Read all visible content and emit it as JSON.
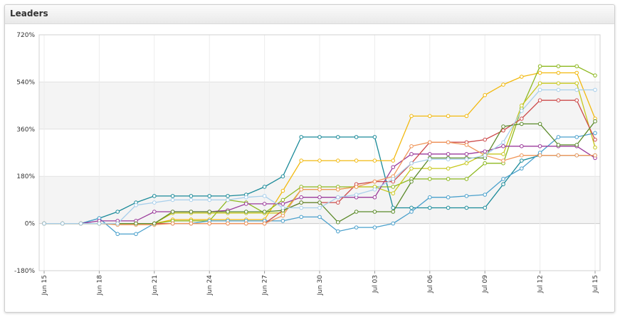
{
  "panel": {
    "title": "Leaders"
  },
  "chart_data": {
    "type": "line",
    "title": "",
    "xlabel": "",
    "ylabel": "",
    "ylim": [
      -180,
      720
    ],
    "ytick_labels": [
      "720%",
      "540%",
      "360%",
      "180%",
      "0%",
      "-180%"
    ],
    "ytick_values": [
      720,
      540,
      360,
      180,
      0,
      -180
    ],
    "grid": true,
    "legend": "none",
    "x": [
      "Jun 15",
      "Jun 16",
      "Jun 17",
      "Jun 18",
      "Jun 19",
      "Jun 20",
      "Jun 21",
      "Jun 22",
      "Jun 23",
      "Jun 24",
      "Jun 25",
      "Jun 26",
      "Jun 27",
      "Jun 28",
      "Jun 29",
      "Jun 30",
      "Jul 01",
      "Jul 02",
      "Jul 03",
      "Jul 04",
      "Jul 05",
      "Jul 06",
      "Jul 07",
      "Jul 08",
      "Jul 09",
      "Jul 10",
      "Jul 11",
      "Jul 12",
      "Jul 13",
      "Jul 14",
      "Jul 15"
    ],
    "xtick_labels": [
      "Jun 15",
      "Jun 18",
      "Jun 21",
      "Jun 24",
      "Jun 27",
      "Jun 30",
      "Jul 03",
      "Jul 06",
      "Jul 09",
      "Jul 12",
      "Jul 15"
    ],
    "xtick_indices": [
      0,
      3,
      6,
      9,
      12,
      15,
      18,
      21,
      24,
      27,
      30
    ],
    "series": [
      {
        "color": "#1a8a99",
        "values": [
          0,
          0,
          0,
          20,
          45,
          80,
          105,
          105,
          105,
          105,
          105,
          110,
          140,
          180,
          330,
          330,
          330,
          330,
          330,
          60,
          60,
          60,
          60,
          60,
          60,
          150,
          240,
          260,
          260,
          260,
          260
        ]
      },
      {
        "color": "#f2b90f",
        "values": [
          0,
          0,
          0,
          0,
          0,
          0,
          0,
          15,
          15,
          15,
          15,
          15,
          15,
          125,
          240,
          240,
          240,
          240,
          240,
          240,
          410,
          410,
          410,
          410,
          490,
          530,
          560,
          575,
          575,
          575,
          400
        ]
      },
      {
        "color": "#8db81e",
        "values": [
          0,
          0,
          0,
          0,
          0,
          0,
          0,
          10,
          10,
          10,
          90,
          80,
          40,
          90,
          140,
          140,
          140,
          140,
          140,
          140,
          170,
          170,
          170,
          170,
          230,
          230,
          440,
          600,
          600,
          600,
          565
        ]
      },
      {
        "color": "#c8c81e",
        "values": [
          0,
          0,
          0,
          0,
          0,
          0,
          0,
          40,
          40,
          40,
          40,
          40,
          40,
          40,
          130,
          130,
          130,
          140,
          140,
          115,
          210,
          210,
          210,
          230,
          265,
          265,
          450,
          535,
          535,
          535,
          290
        ]
      },
      {
        "color": "#4aa0cc",
        "values": [
          0,
          0,
          0,
          20,
          -40,
          -40,
          0,
          0,
          0,
          10,
          10,
          10,
          10,
          10,
          25,
          25,
          -30,
          -15,
          -15,
          0,
          45,
          100,
          100,
          105,
          110,
          170,
          210,
          270,
          330,
          330,
          345
        ]
      },
      {
        "color": "#9b3b9b",
        "values": [
          0,
          0,
          0,
          10,
          10,
          10,
          45,
          45,
          45,
          45,
          50,
          75,
          75,
          75,
          100,
          100,
          100,
          100,
          100,
          215,
          265,
          265,
          265,
          265,
          275,
          295,
          295,
          295,
          295,
          295,
          250
        ]
      },
      {
        "color": "#cc4a4a",
        "values": [
          0,
          0,
          0,
          0,
          0,
          0,
          0,
          0,
          0,
          0,
          0,
          0,
          0,
          50,
          80,
          80,
          80,
          150,
          160,
          160,
          230,
          310,
          310,
          310,
          320,
          355,
          400,
          470,
          470,
          470,
          320
        ]
      },
      {
        "color": "#f0975a",
        "values": [
          0,
          0,
          0,
          0,
          -5,
          -5,
          -5,
          0,
          0,
          0,
          0,
          0,
          0,
          30,
          130,
          130,
          130,
          140,
          160,
          180,
          295,
          310,
          310,
          300,
          260,
          240,
          260,
          260,
          260,
          260,
          260
        ]
      },
      {
        "color": "#5b8a2a",
        "values": [
          0,
          0,
          0,
          0,
          0,
          0,
          0,
          45,
          45,
          45,
          45,
          45,
          45,
          50,
          80,
          80,
          5,
          45,
          45,
          45,
          160,
          250,
          250,
          250,
          250,
          370,
          380,
          380,
          300,
          300,
          390
        ]
      },
      {
        "color": "#a8cfeb",
        "values": [
          0,
          0,
          0,
          0,
          0,
          70,
          80,
          90,
          90,
          90,
          90,
          100,
          105,
          60,
          60,
          60,
          100,
          110,
          130,
          170,
          230,
          245,
          245,
          245,
          260,
          310,
          430,
          510,
          510,
          510,
          510
        ]
      }
    ]
  }
}
